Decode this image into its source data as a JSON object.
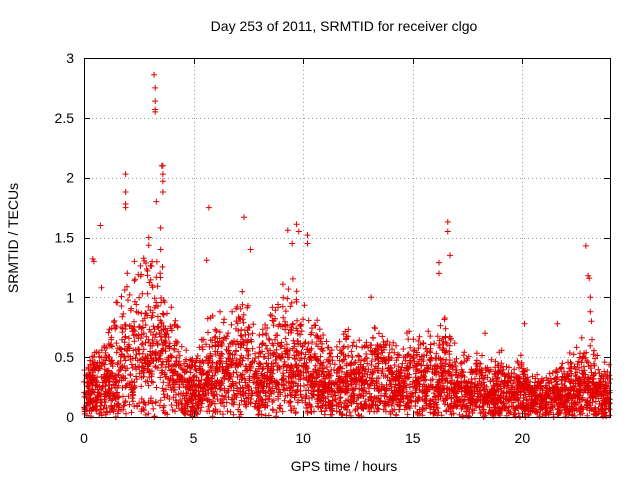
{
  "chart_data": {
    "type": "scatter",
    "title": "Day 253 of 2011, SRMTID for receiver clgo",
    "xlabel": "GPS time / hours",
    "ylabel": "SRMTID / TECUs",
    "xlim": [
      0,
      24
    ],
    "ylim": [
      0,
      3
    ],
    "xticks": [
      0,
      5,
      10,
      15,
      20
    ],
    "yticks": [
      0,
      0.5,
      1,
      1.5,
      2,
      2.5,
      3
    ],
    "xtick_labels": [
      "0",
      "5",
      "10",
      "15",
      "20"
    ],
    "ytick_labels": [
      "0",
      "0.5",
      "1",
      "1.5",
      "2",
      "2.5",
      "3"
    ],
    "grid": true,
    "marker": "+",
    "color": "#e00000",
    "envelope": [
      [
        0.0,
        0.35
      ],
      [
        0.5,
        0.45
      ],
      [
        1.0,
        0.55
      ],
      [
        1.5,
        0.8
      ],
      [
        2.0,
        1.0
      ],
      [
        2.5,
        1.05
      ],
      [
        3.0,
        1.2
      ],
      [
        3.5,
        1.1
      ],
      [
        4.0,
        0.8
      ],
      [
        4.5,
        0.5
      ],
      [
        5.0,
        0.4
      ],
      [
        5.5,
        0.6
      ],
      [
        6.0,
        0.8
      ],
      [
        6.5,
        0.65
      ],
      [
        7.0,
        0.85
      ],
      [
        7.5,
        0.9
      ],
      [
        8.0,
        0.55
      ],
      [
        8.5,
        0.75
      ],
      [
        9.0,
        0.95
      ],
      [
        9.5,
        1.0
      ],
      [
        10.0,
        0.8
      ],
      [
        10.5,
        0.7
      ],
      [
        11.0,
        0.55
      ],
      [
        11.5,
        0.5
      ],
      [
        12.0,
        0.6
      ],
      [
        12.5,
        0.55
      ],
      [
        13.0,
        0.6
      ],
      [
        13.5,
        0.65
      ],
      [
        14.0,
        0.55
      ],
      [
        14.5,
        0.55
      ],
      [
        15.0,
        0.6
      ],
      [
        15.5,
        0.6
      ],
      [
        16.0,
        0.6
      ],
      [
        16.5,
        0.7
      ],
      [
        17.0,
        0.5
      ],
      [
        17.5,
        0.4
      ],
      [
        18.0,
        0.45
      ],
      [
        18.5,
        0.4
      ],
      [
        19.0,
        0.45
      ],
      [
        19.5,
        0.4
      ],
      [
        20.0,
        0.4
      ],
      [
        20.5,
        0.3
      ],
      [
        21.0,
        0.3
      ],
      [
        21.5,
        0.35
      ],
      [
        22.0,
        0.4
      ],
      [
        22.5,
        0.5
      ],
      [
        23.0,
        0.6
      ],
      [
        23.5,
        0.4
      ],
      [
        24.0,
        0.35
      ]
    ],
    "samples_per_hour": 170,
    "outliers": [
      [
        0.4,
        1.32
      ],
      [
        0.45,
        1.3
      ],
      [
        0.75,
        1.6
      ],
      [
        0.8,
        1.08
      ],
      [
        1.9,
        2.03
      ],
      [
        1.9,
        1.88
      ],
      [
        1.9,
        1.78
      ],
      [
        1.9,
        1.75
      ],
      [
        2.3,
        1.3
      ],
      [
        3.2,
        2.86
      ],
      [
        3.25,
        2.75
      ],
      [
        3.25,
        2.64
      ],
      [
        3.25,
        2.57
      ],
      [
        3.25,
        2.55
      ],
      [
        3.3,
        1.8
      ],
      [
        3.5,
        1.58
      ],
      [
        3.55,
        2.1
      ],
      [
        3.6,
        2.1
      ],
      [
        3.6,
        2.03
      ],
      [
        3.6,
        1.97
      ],
      [
        3.6,
        1.88
      ],
      [
        3.5,
        1.4
      ],
      [
        5.7,
        1.75
      ],
      [
        5.6,
        1.31
      ],
      [
        7.3,
        1.67
      ],
      [
        7.6,
        1.4
      ],
      [
        9.3,
        1.56
      ],
      [
        9.5,
        1.45
      ],
      [
        9.7,
        1.61
      ],
      [
        9.8,
        1.55
      ],
      [
        10.2,
        1.52
      ],
      [
        10.2,
        1.45
      ],
      [
        13.1,
        1.0
      ],
      [
        16.2,
        1.29
      ],
      [
        16.2,
        1.2
      ],
      [
        16.6,
        1.63
      ],
      [
        16.6,
        1.55
      ],
      [
        16.7,
        1.35
      ],
      [
        18.3,
        0.7
      ],
      [
        20.1,
        0.78
      ],
      [
        21.6,
        0.78
      ],
      [
        22.9,
        1.43
      ],
      [
        23.0,
        1.18
      ],
      [
        23.05,
        1.16
      ],
      [
        23.1,
        1.0
      ],
      [
        23.1,
        0.88
      ],
      [
        23.15,
        0.8
      ]
    ]
  }
}
